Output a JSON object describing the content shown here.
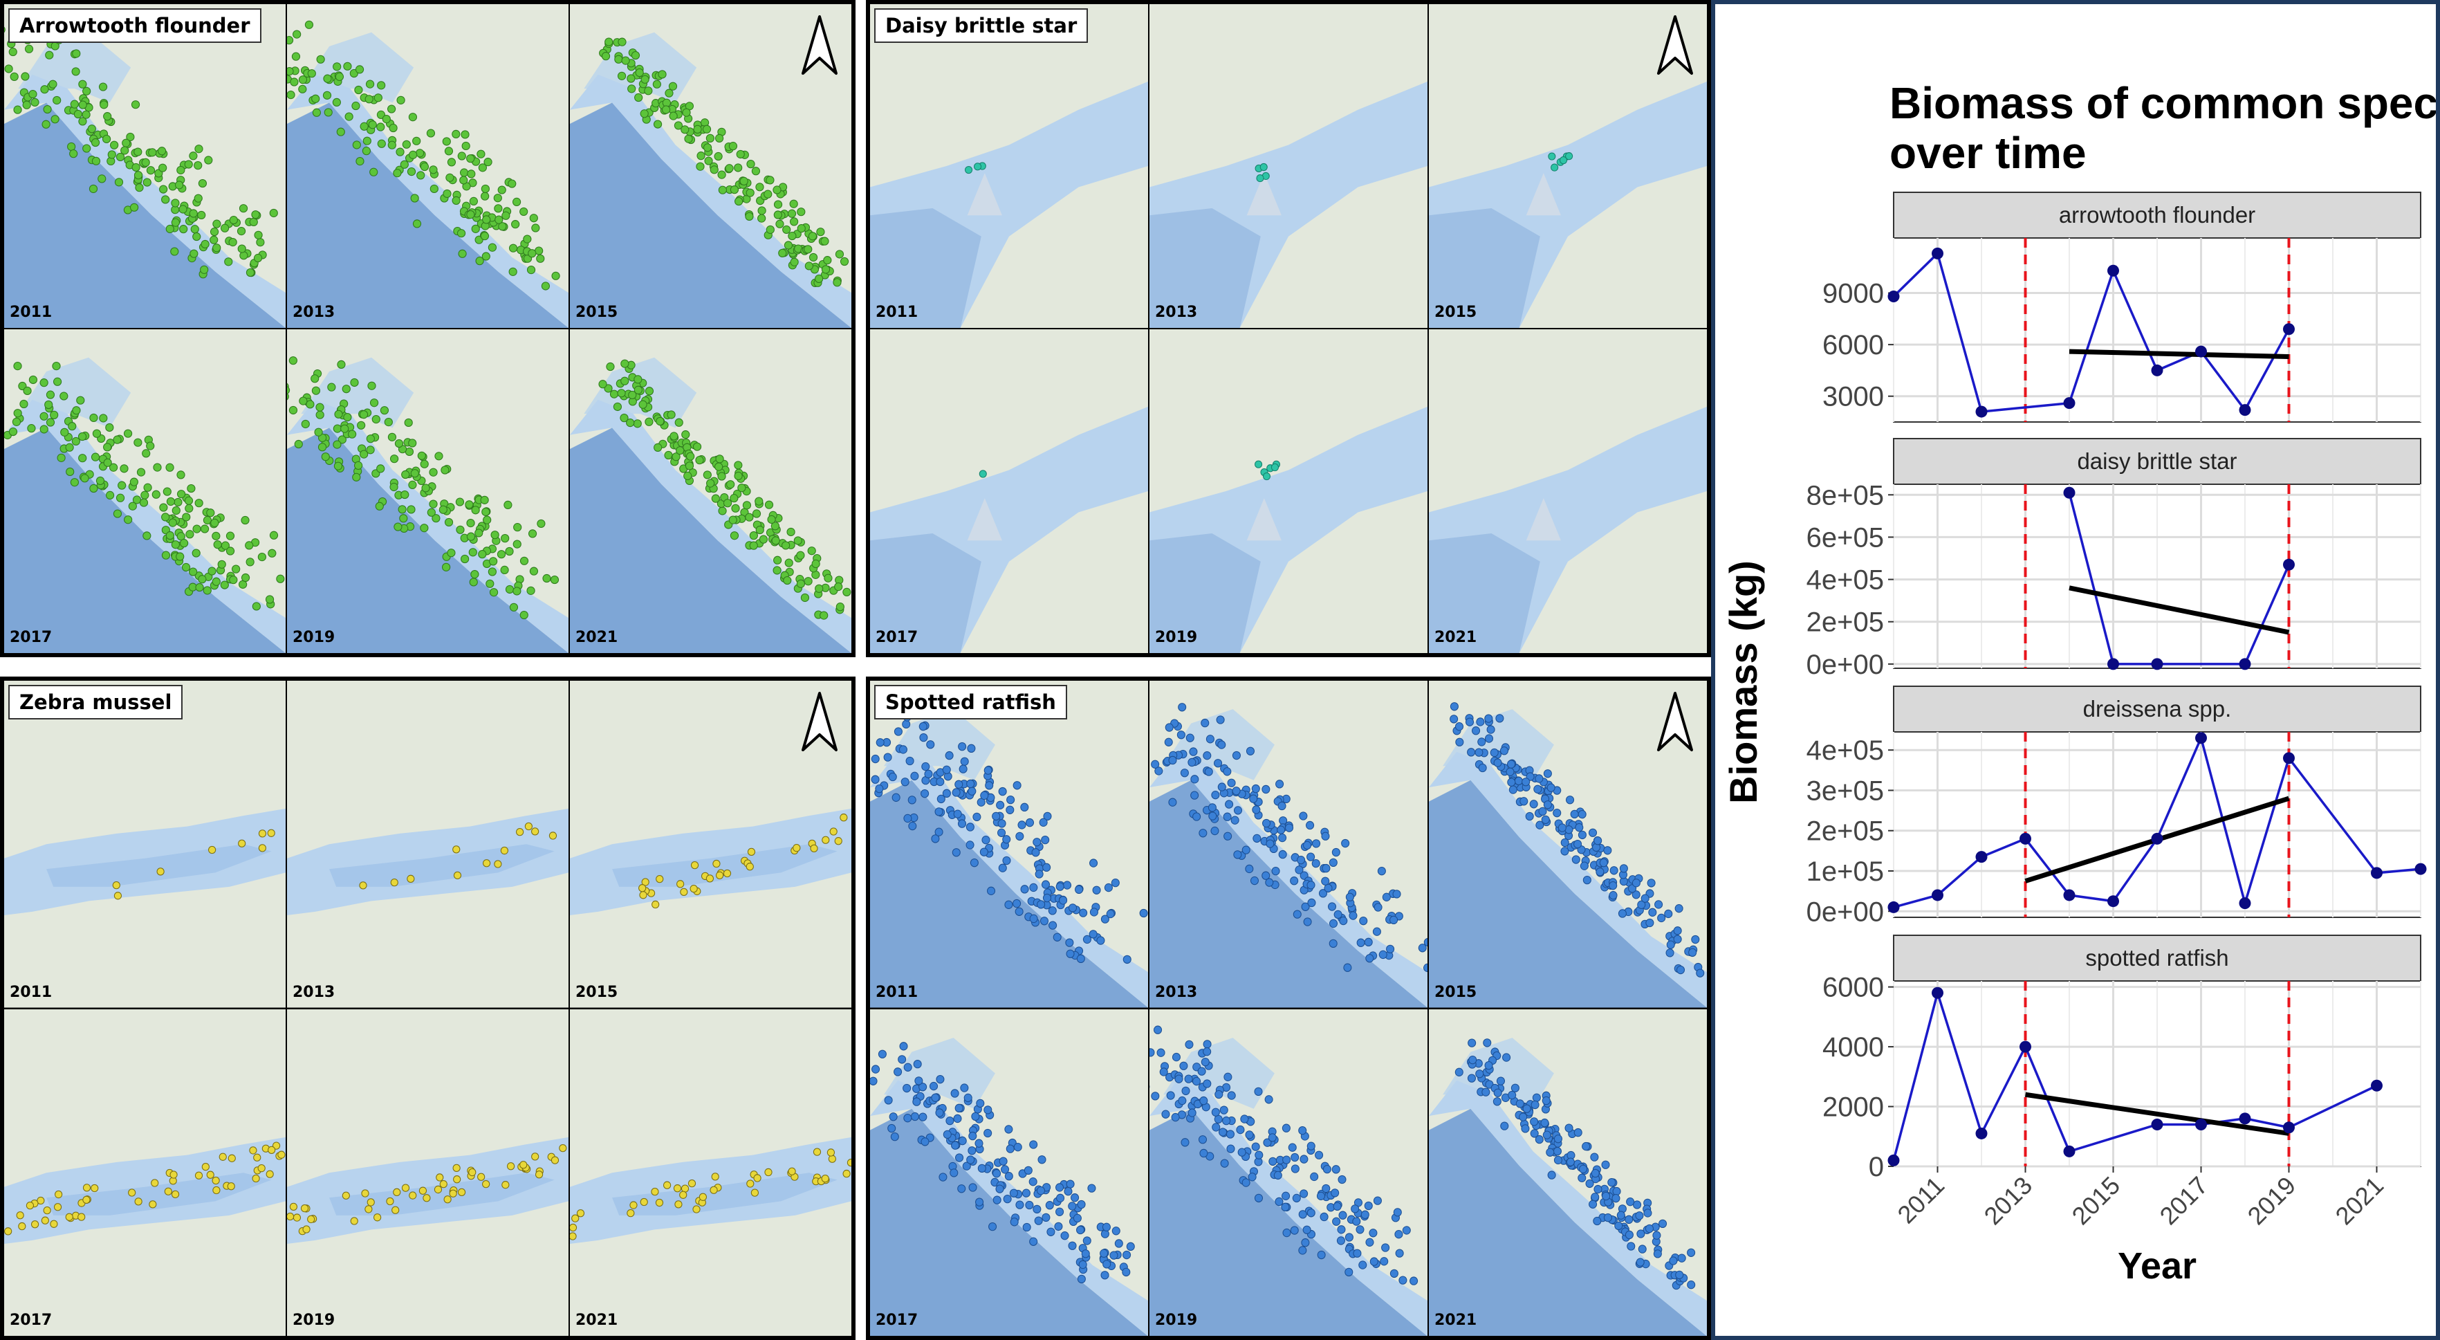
{
  "maps": [
    {
      "species": "Arrowtooth flounder",
      "region": "bc",
      "dot_color": "#5cc43a",
      "dot_stroke": "#2f7a1d",
      "years": [
        "2011",
        "2013",
        "2015",
        "2017",
        "2019",
        "2021"
      ]
    },
    {
      "species": "Daisy brittle star",
      "region": "ns",
      "dot_color": "#2ec4a6",
      "dot_stroke": "#14806b",
      "years": [
        "2011",
        "2013",
        "2015",
        "2017",
        "2019",
        "2021"
      ]
    },
    {
      "species": "Zebra mussel",
      "region": "erie",
      "dot_color": "#e8d73a",
      "dot_stroke": "#7a6d10",
      "years": [
        "2011",
        "2013",
        "2015",
        "2017",
        "2019",
        "2021"
      ]
    },
    {
      "species": "Spotted ratfish",
      "region": "bc",
      "dot_color": "#3a80d6",
      "dot_stroke": "#1c4f93",
      "years": [
        "2011",
        "2013",
        "2015",
        "2017",
        "2019",
        "2021"
      ]
    }
  ],
  "colors": {
    "land": "#e3e8dc",
    "water_shelf": "#b8d3ee",
    "water_deep": "#7ea6d6",
    "series_line": "#1a1ac8",
    "points": "#0a0a80",
    "trend": "#000000",
    "vline": "#e8141c",
    "strip": "#d9d9d9"
  },
  "chart_data": {
    "type": "line",
    "title": "Biomass of common species over time",
    "xlabel": "Year",
    "ylabel": "Biomass (kg)",
    "xlim": [
      2010,
      2022
    ],
    "x_ticks": [
      2011,
      2013,
      2015,
      2017,
      2019,
      2021
    ],
    "vlines": [
      2013,
      2019
    ],
    "facets": [
      {
        "name": "arrowtooth flounder",
        "ylim": [
          1500,
          12200
        ],
        "y_ticks": [
          3000,
          6000,
          9000
        ],
        "y_tick_labels": [
          "3000",
          "6000",
          "9000"
        ],
        "x": [
          2010,
          2011,
          2012,
          2014,
          2015,
          2016,
          2017,
          2018,
          2019
        ],
        "y": [
          8800,
          11300,
          2100,
          2600,
          10300,
          4500,
          5600,
          2200,
          6900
        ],
        "trend": {
          "x": [
            2014,
            2019
          ],
          "y": [
            5600,
            5300
          ]
        }
      },
      {
        "name": "daisy brittle star",
        "ylim": [
          -20000,
          850000
        ],
        "y_ticks": [
          0,
          200000,
          400000,
          600000,
          800000
        ],
        "y_tick_labels": [
          "0e+00",
          "2e+05",
          "4e+05",
          "6e+05",
          "8e+05"
        ],
        "x": [
          2014,
          2015,
          2016,
          2018,
          2019
        ],
        "y": [
          810000,
          0,
          0,
          0,
          470000
        ],
        "trend": {
          "x": [
            2014,
            2019
          ],
          "y": [
            360000,
            150000
          ]
        }
      },
      {
        "name": "dreissena spp.",
        "ylim": [
          -15000,
          445000
        ],
        "y_ticks": [
          0,
          100000,
          200000,
          300000,
          400000
        ],
        "y_tick_labels": [
          "0e+00",
          "1e+05",
          "2e+05",
          "3e+05",
          "4e+05"
        ],
        "x": [
          2010,
          2011,
          2012,
          2013,
          2014,
          2015,
          2016,
          2017,
          2018,
          2019,
          2021,
          2022
        ],
        "y": [
          10000,
          40000,
          135000,
          180000,
          40000,
          25000,
          180000,
          430000,
          20000,
          380000,
          95000,
          105000
        ],
        "trend": {
          "x": [
            2013,
            2019
          ],
          "y": [
            75000,
            280000
          ]
        }
      },
      {
        "name": "spotted ratfish",
        "ylim": [
          0,
          6200
        ],
        "y_ticks": [
          0,
          2000,
          4000,
          6000
        ],
        "y_tick_labels": [
          "0",
          "2000",
          "4000",
          "6000"
        ],
        "x": [
          2010,
          2011,
          2012,
          2013,
          2014,
          2016,
          2017,
          2018,
          2019,
          2021
        ],
        "y": [
          200,
          5800,
          1100,
          4000,
          500,
          1400,
          1400,
          1600,
          1300,
          2700
        ],
        "trend": {
          "x": [
            2013,
            2019
          ],
          "y": [
            2400,
            1100
          ]
        }
      }
    ]
  }
}
